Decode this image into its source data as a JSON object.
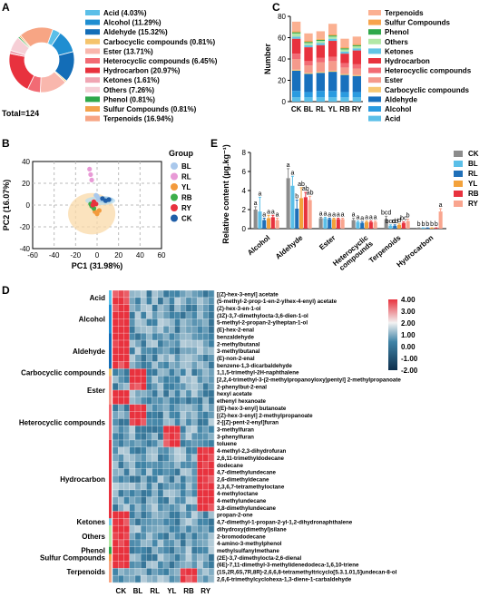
{
  "panel_labels": {
    "a": "A",
    "b": "B",
    "c": "C",
    "d": "D",
    "e": "E"
  },
  "colors": {
    "Acid": "#5bbfe8",
    "Alcohol": "#1f8ed1",
    "Aldehyde": "#136db7",
    "Carbocyclic compounds": "#f5c46c",
    "Ester": "#f59a8c",
    "Heterocyclic compounds": "#f26b74",
    "Hydrocarbon": "#e8323e",
    "Ketones": "#74cde6",
    "Others": "#b2e8a6",
    "Phenol": "#2ea84a",
    "Sulfur Compounds": "#f3a24c",
    "Terpenoids": "#f7a584"
  },
  "chart_data": [
    {
      "id": "A",
      "type": "pie",
      "total_label": "Total=124",
      "slices": [
        {
          "name": "Acid",
          "value": 4.03,
          "label": "Acid (4.03%)",
          "color": "#5bbfe8"
        },
        {
          "name": "Alcohol",
          "value": 11.29,
          "label": "Alcohol (11.29%)",
          "color": "#1f8ed1"
        },
        {
          "name": "Aldehyde",
          "value": 15.32,
          "label": "Aldehyde (15.32%)",
          "color": "#136db7"
        },
        {
          "name": "Carbocyclic compounds",
          "value": 0.81,
          "label": "Carbocyclic compounds (0.81%)",
          "color": "#f5c46c"
        },
        {
          "name": "Ester",
          "value": 13.71,
          "label": "Ester (13.71%)",
          "color": "#f9b7ad"
        },
        {
          "name": "Heterocyclic compounds",
          "value": 6.45,
          "label": "Heterocyclic compounds (6.45%)",
          "color": "#f26b74"
        },
        {
          "name": "Hydrocarbon",
          "value": 20.97,
          "label": "Hydrocarbon (20.97%)",
          "color": "#e8323e"
        },
        {
          "name": "Ketones",
          "value": 1.61,
          "label": "Ketones (1.61%)",
          "color": "#f0a6b3"
        },
        {
          "name": "Others",
          "value": 7.26,
          "label": "Others (7.26%)",
          "color": "#f6cfd6"
        },
        {
          "name": "Phenol",
          "value": 0.81,
          "label": "Phenol (0.81%)",
          "color": "#2ea84a"
        },
        {
          "name": "Sulfur Compounds",
          "value": 0.81,
          "label": "Sulfur Compounds (0.81%)",
          "color": "#f3a24c"
        },
        {
          "name": "Terpenoids",
          "value": 16.94,
          "label": "Terpenoids (16.94%)",
          "color": "#f7a584"
        }
      ]
    },
    {
      "id": "B",
      "type": "scatter",
      "xlabel": "PC1 (31.98%)",
      "ylabel": "PC2 (16.07%)",
      "xlim": [
        -60,
        60
      ],
      "ylim": [
        -40,
        40
      ],
      "xticks": [
        -60,
        -40,
        -20,
        0,
        20,
        40,
        60
      ],
      "yticks": [
        -40,
        -20,
        0,
        20,
        40
      ],
      "legend_title": "Group",
      "series": [
        {
          "name": "BL",
          "color": "#a9c8ec",
          "points": [
            [
              0,
              8
            ],
            [
              2,
              6
            ],
            [
              -1,
              9
            ]
          ]
        },
        {
          "name": "RL",
          "color": "#e89ad6",
          "points": [
            [
              -7,
              33
            ],
            [
              -6,
              28
            ],
            [
              -5,
              23
            ]
          ]
        },
        {
          "name": "YL",
          "color": "#f39a3c",
          "points": [
            [
              -2,
              -6
            ],
            [
              0,
              -8
            ],
            [
              2,
              -5
            ]
          ]
        },
        {
          "name": "RB",
          "color": "#3dae4a",
          "points": [
            [
              -5,
              -1
            ],
            [
              -3,
              -3
            ],
            [
              -6,
              1
            ]
          ]
        },
        {
          "name": "RY",
          "color": "#e8323e",
          "points": [
            [
              -3,
              3
            ],
            [
              -1,
              1
            ],
            [
              -4,
              0
            ]
          ]
        },
        {
          "name": "CK",
          "color": "#1f5ea8",
          "points": [
            [
              5,
              6
            ],
            [
              8,
              4
            ],
            [
              11,
              5
            ]
          ]
        }
      ]
    },
    {
      "id": "C",
      "type": "bar",
      "stacked": true,
      "categories": [
        "CK",
        "BL",
        "RL",
        "YL",
        "RB",
        "RY"
      ],
      "ylabel": "Number",
      "ylim": [
        0,
        80
      ],
      "yticks": [
        0,
        20,
        40,
        60,
        80
      ],
      "series": [
        {
          "name": "Acid",
          "color": "#5bbfe8",
          "values": [
            4,
            4,
            4,
            4,
            4,
            4
          ]
        },
        {
          "name": "Alcohol",
          "color": "#2a9be0",
          "values": [
            6,
            5,
            6,
            6,
            5,
            5
          ]
        },
        {
          "name": "Aldehyde",
          "color": "#1870bd",
          "values": [
            19,
            17,
            17,
            18,
            16,
            15
          ]
        },
        {
          "name": "Carbocyclic compounds",
          "color": "#f7c873",
          "values": [
            1,
            1,
            1,
            1,
            1,
            1
          ]
        },
        {
          "name": "Ester",
          "color": "#f59a8c",
          "values": [
            10,
            7,
            9,
            9,
            6,
            6
          ]
        },
        {
          "name": "Heterocyclic compounds",
          "color": "#f26b74",
          "values": [
            5,
            4,
            4,
            4,
            4,
            4
          ]
        },
        {
          "name": "Hydrocarbon",
          "color": "#e8323e",
          "values": [
            14,
            13,
            12,
            15,
            9,
            13
          ]
        },
        {
          "name": "Ketones",
          "color": "#62c4e4",
          "values": [
            2,
            2,
            2,
            2,
            2,
            2
          ]
        },
        {
          "name": "Others",
          "color": "#b2e8a6",
          "values": [
            3,
            2,
            2,
            2,
            2,
            2
          ]
        },
        {
          "name": "Phenol",
          "color": "#2ea84a",
          "values": [
            1,
            1,
            1,
            1,
            1,
            1
          ]
        },
        {
          "name": "Sulfur Compounds",
          "color": "#f7a44d",
          "values": [
            1,
            1,
            1,
            1,
            1,
            1
          ]
        },
        {
          "name": "Terpenoids",
          "color": "#fbb091",
          "values": [
            9,
            7,
            7,
            10,
            8,
            7
          ]
        }
      ],
      "legend_order": [
        "Terpenoids",
        "Sulfur Compounds",
        "Phenol",
        "Others",
        "Ketones",
        "Hydrocarbon",
        "Heterocyclic compounds",
        "Ester",
        "Carbocyclic compounds",
        "Aldehyde",
        "Alcohol",
        "Acid"
      ]
    },
    {
      "id": "E",
      "type": "bar",
      "categories": [
        "Alcohol",
        "Aldehyde",
        "Ester",
        "Heterocyclic compounds",
        "Terpenoids",
        "Hydrocarbon"
      ],
      "category_labels": [
        [
          "Alcohol"
        ],
        [
          "Aldehyde"
        ],
        [
          "Ester"
        ],
        [
          "Heterocyclic",
          "compounds"
        ],
        [
          "Terpenoids"
        ],
        [
          "Hydrocarbon"
        ]
      ],
      "ylabel": "Relative content (µg.kg⁻¹)",
      "ylim": [
        0,
        8
      ],
      "yticks": [
        0,
        2,
        4,
        6,
        8
      ],
      "series": [
        {
          "name": "CK",
          "color": "#8c8c8c",
          "values": [
            2.0,
            5.3,
            1.1,
            0.9,
            1.0,
            0.05
          ],
          "errors": [
            0.3,
            1.0,
            0.1,
            0.2,
            0.3,
            0.03
          ],
          "letters": [
            "a",
            "a",
            "a",
            "a",
            "bcd",
            "b"
          ]
        },
        {
          "name": "BL",
          "color": "#5bbfe8",
          "values": [
            1.8,
            4.5,
            1.1,
            0.7,
            0.3,
            0.05
          ],
          "errors": [
            1.5,
            1.0,
            0.1,
            0.1,
            0.1,
            0.03
          ],
          "letters": [
            "a",
            "a",
            "a",
            "a",
            "bcd",
            "b"
          ]
        },
        {
          "name": "RL",
          "color": "#1f6fb8",
          "values": [
            0.9,
            2.1,
            1.0,
            0.6,
            0.3,
            0.05
          ],
          "errors": [
            0.2,
            0.9,
            0.1,
            0.1,
            0.1,
            0.03
          ],
          "letters": [
            "a",
            "b",
            "a",
            "a",
            "cd",
            "b"
          ]
        },
        {
          "name": "YL",
          "color": "#f3a23c",
          "values": [
            1.1,
            3.2,
            1.0,
            0.7,
            0.4,
            0.05
          ],
          "errors": [
            0.3,
            1.1,
            0.1,
            0.1,
            0.1,
            0.03
          ],
          "letters": [
            "a",
            "ab",
            "a",
            "a",
            "d",
            "b"
          ]
        },
        {
          "name": "RB",
          "color": "#e8323e",
          "values": [
            1.2,
            3.3,
            1.0,
            0.7,
            0.6,
            0.05
          ],
          "errors": [
            0.2,
            0.5,
            0.1,
            0.1,
            0.1,
            0.03
          ],
          "letters": [
            "a",
            "ab",
            "a",
            "a",
            "bc",
            "b"
          ]
        },
        {
          "name": "RY",
          "color": "#f9a58f",
          "values": [
            0.9,
            3.0,
            1.0,
            0.7,
            0.8,
            1.8
          ],
          "errors": [
            0.2,
            0.4,
            0.1,
            0.1,
            0.2,
            0.3
          ],
          "letters": [
            "a",
            "ab",
            "a",
            "a",
            "b",
            "a"
          ]
        }
      ]
    },
    {
      "id": "D",
      "type": "heatmap",
      "columns": [
        "CK",
        "BL",
        "RL",
        "YL",
        "RB",
        "RY"
      ],
      "reps_per_group": 3,
      "color_scale": {
        "min": -2.0,
        "max": 4.0,
        "ticks": [
          "4.00",
          "3.00",
          "2.00",
          "1.00",
          "0.00",
          "-1.00",
          "-2.00"
        ],
        "low": "#0e2f4d",
        "mid": "#f2f2f2",
        "high": "#e8323e"
      },
      "groups": [
        {
          "name": "Acid",
          "start": 0,
          "end": 1
        },
        {
          "name": "Alcohol",
          "start": 2,
          "end": 5
        },
        {
          "name": "Aldehyde",
          "start": 6,
          "end": 10
        },
        {
          "name": "Carbocyclic compounds",
          "start": 11,
          "end": 11
        },
        {
          "name": "Ester",
          "start": 12,
          "end": 15
        },
        {
          "name": "Heterocyclic compounds",
          "start": 16,
          "end": 20
        },
        {
          "name": "Hydrocarbon",
          "start": 21,
          "end": 31
        },
        {
          "name": "Ketones",
          "start": 32,
          "end": 32
        },
        {
          "name": "Others",
          "start": 33,
          "end": 35
        },
        {
          "name": "Phenol",
          "start": 36,
          "end": 36
        },
        {
          "name": "Sulfur Compounds",
          "start": 37,
          "end": 37
        },
        {
          "name": "Terpenoids",
          "start": 38,
          "end": 40
        }
      ],
      "rows": [
        {
          "name": "[(Z)-hex-3-enyl] acetate",
          "peak": 0
        },
        {
          "name": "(5-methyl-2-prop-1-en-2-ylhex-4-enyl) acetate",
          "peak": 0
        },
        {
          "name": "(Z)-hex-3-en-1-ol",
          "peak": 0
        },
        {
          "name": "(3Z)-3,7-dimethylocta-3,6-dien-1-ol",
          "peak": 0
        },
        {
          "name": "5-methyl-2-propan-2-ylheptan-1-ol",
          "peak": 0
        },
        {
          "name": "(E)-hex-2-enal",
          "peak": 0
        },
        {
          "name": "benzaldehyde",
          "peak": 0
        },
        {
          "name": "2-methylbutanal",
          "peak": 0
        },
        {
          "name": "3-methylbutanal",
          "peak": 0
        },
        {
          "name": "(E)-non-2-enal",
          "peak": 0
        },
        {
          "name": "benzene-1,3-dicarbaldehyde",
          "peak": 0
        },
        {
          "name": "1,1,5-trimethyl-2H-naphthalene",
          "peak": 1
        },
        {
          "name": "[2,2,4-trimethyl-3-(2-methylpropanoyloxy)pentyl] 2-methylpropanoate",
          "peak": 1
        },
        {
          "name": "2-phenylbut-2-enal",
          "peak": 1
        },
        {
          "name": "hexyl acetate",
          "peak": 0
        },
        {
          "name": "ethenyl hexanoate",
          "peak": 0
        },
        {
          "name": "[(E)-hex-3-enyl] butanoate",
          "peak": 1
        },
        {
          "name": "[(Z)-hex-3-enyl] 2-methylpropanoate",
          "peak": 1
        },
        {
          "name": "2-[(Z)-pent-2-enyl]furan",
          "peak": 1
        },
        {
          "name": "3-methylfuran",
          "peak": 3
        },
        {
          "name": "3-phenylfuran",
          "peak": 3
        },
        {
          "name": "toluene",
          "peak": 3
        },
        {
          "name": "4-methyl-2,3-dihydrofuran",
          "peak": 5
        },
        {
          "name": "2,6,11-trimethyldodecane",
          "peak": 5
        },
        {
          "name": "dodecane",
          "peak": 5
        },
        {
          "name": "4,7-dimethylundecane",
          "peak": 5
        },
        {
          "name": "2,6-dimethyldecane",
          "peak": 5
        },
        {
          "name": "2,3,6,7-tetramethyloctane",
          "peak": 5
        },
        {
          "name": "4-methyloctane",
          "peak": 5
        },
        {
          "name": "4-methylundecane",
          "peak": 5
        },
        {
          "name": "3,8-dimethylundecane",
          "peak": 5
        },
        {
          "name": "propan-2-one",
          "peak": 0
        },
        {
          "name": "4,7-dimethyl-1-propan-2-yl-1,2-dihydronaphthalene",
          "peak": 0
        },
        {
          "name": "dihydroxy(dimethyl)silane",
          "peak": 0
        },
        {
          "name": "2-bromododecane",
          "peak": 0
        },
        {
          "name": "4-amino-3-methylphenol",
          "peak": 0
        },
        {
          "name": "methylsulfanylmethane",
          "peak": 0
        },
        {
          "name": "(2E)-3,7-dimethylocta-2,6-dienal",
          "peak": 0
        },
        {
          "name": "(6E)-7,11-dimethyl-3-methylidenedodeca-1,6,10-triene",
          "peak": 0
        },
        {
          "name": "(1S,2R,6S,7R,8R)-2,6,6,8-tetramethyltricyclo[5.3.1.01,5]undecan-8-ol",
          "peak": 4
        },
        {
          "name": "2,6,6-trimethylcyclohexa-1,3-diene-1-carbaldehyde",
          "peak": 4
        }
      ]
    }
  ]
}
